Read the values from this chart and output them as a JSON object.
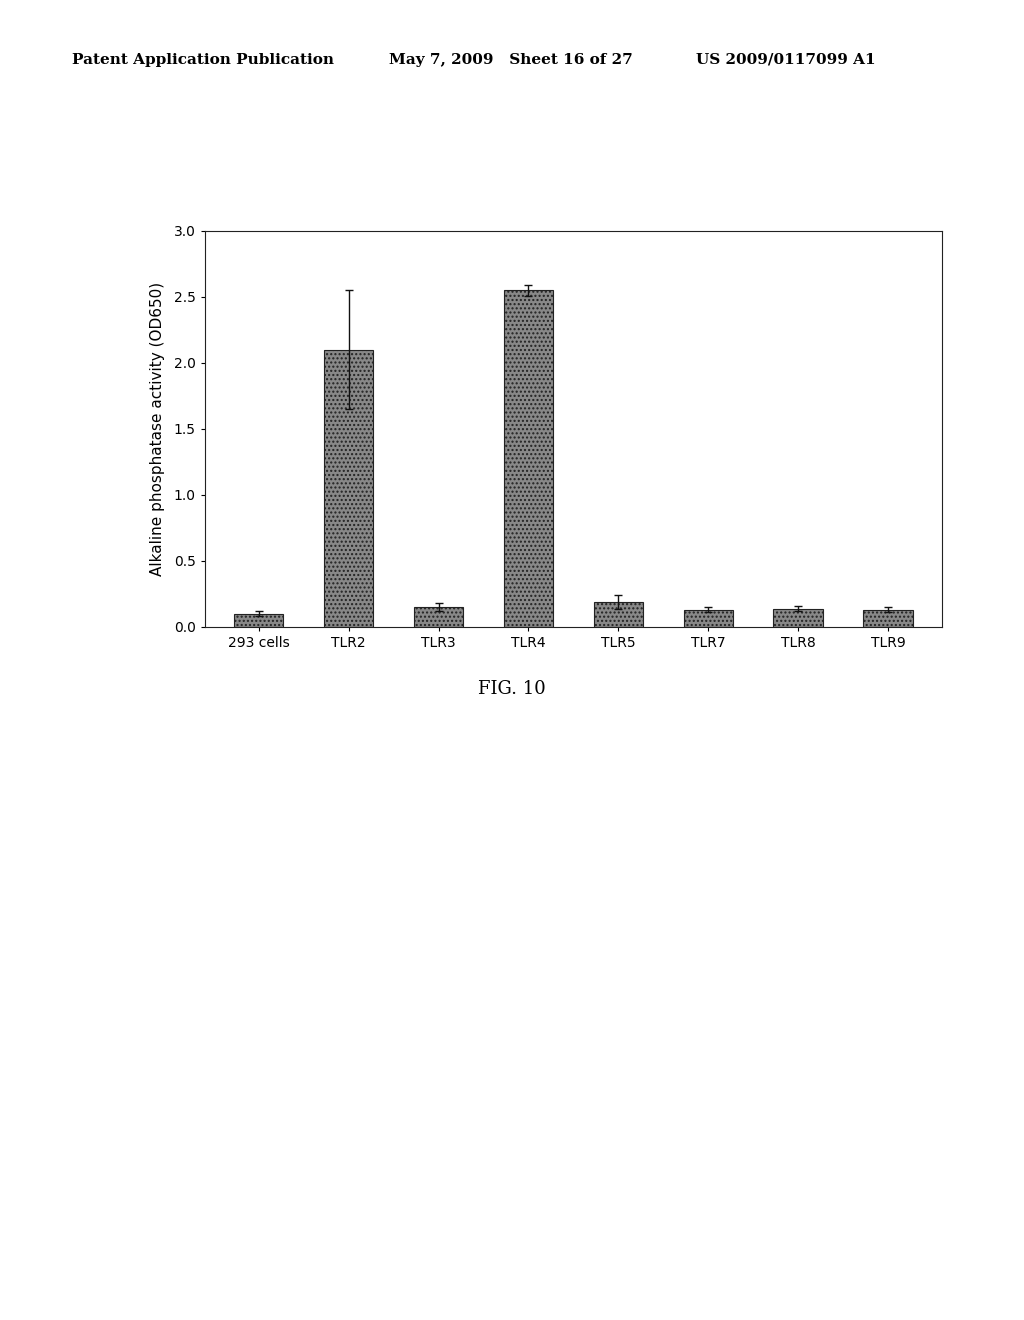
{
  "categories": [
    "293 cells",
    "TLR2",
    "TLR3",
    "TLR4",
    "TLR5",
    "TLR7",
    "TLR8",
    "TLR9"
  ],
  "values": [
    0.1,
    2.1,
    0.15,
    2.55,
    0.19,
    0.13,
    0.14,
    0.13
  ],
  "errors": [
    0.02,
    0.45,
    0.03,
    0.04,
    0.05,
    0.02,
    0.02,
    0.02
  ],
  "bar_color": "#909090",
  "ylabel": "Alkaline phosphatase activity (OD650)",
  "ylim": [
    0.0,
    3.0
  ],
  "yticks": [
    0.0,
    0.5,
    1.0,
    1.5,
    2.0,
    2.5,
    3.0
  ],
  "fig_caption": "FIG. 10",
  "header_left": "Patent Application Publication",
  "header_center": "May 7, 2009   Sheet 16 of 27",
  "header_right": "US 2009/0117099 A1",
  "background_color": "#ffffff",
  "bar_edge_color": "#222222",
  "error_color": "#111111",
  "header_fontsize": 11,
  "tick_fontsize": 10,
  "ylabel_fontsize": 11,
  "caption_fontsize": 13
}
